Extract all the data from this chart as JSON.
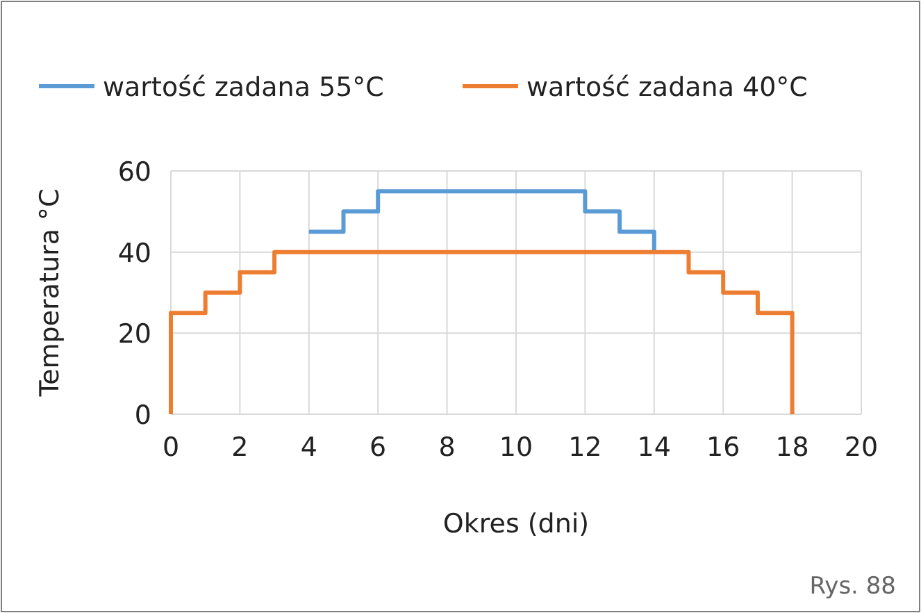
{
  "chart_data": {
    "type": "step",
    "xlabel": "Okres (dni)",
    "ylabel": "Temperatura °C",
    "series": [
      {
        "name": "wartość zadana 55°C",
        "color": "#5b9bd5",
        "x": [
          4,
          5,
          6,
          12,
          13,
          14
        ],
        "values": [
          45,
          50,
          55,
          50,
          45,
          40
        ]
      },
      {
        "name": "wartość zadana 40°C",
        "color": "#ed7d31",
        "x": [
          0,
          0,
          1,
          2,
          3,
          15,
          16,
          17,
          18
        ],
        "values": [
          0,
          25,
          30,
          35,
          40,
          35,
          30,
          25,
          0
        ]
      }
    ],
    "xlim": [
      0,
      20
    ],
    "xticks": [
      0,
      2,
      4,
      6,
      8,
      10,
      12,
      14,
      16,
      18,
      20
    ],
    "ylim": [
      0,
      60
    ],
    "yticks": [
      0,
      20,
      40,
      60
    ],
    "grid": true,
    "legend": "top",
    "marker": "none",
    "line_style": "solid",
    "annotations": [
      "Rys. 88"
    ]
  }
}
